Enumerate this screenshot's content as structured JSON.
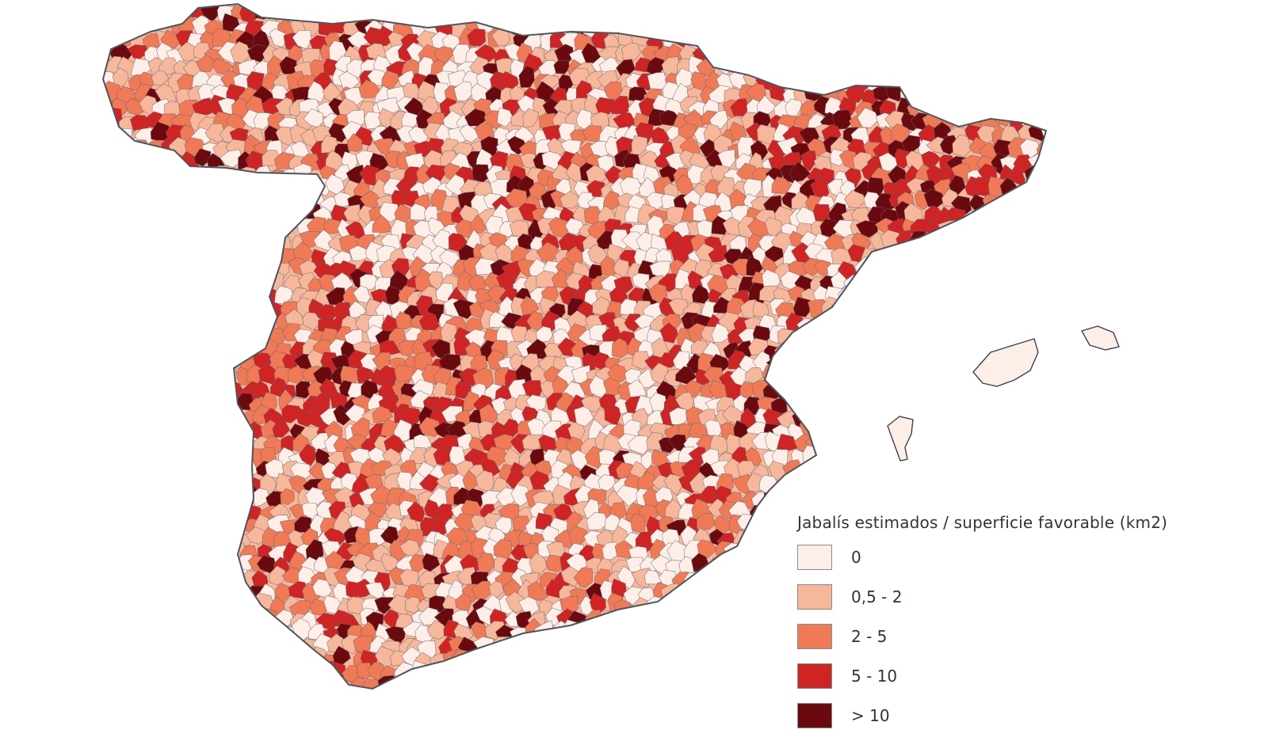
{
  "legend": {
    "title": "Jabalís estimados / superficie favorable (km2)",
    "items": [
      {
        "label": "0",
        "color": "#fdeee8"
      },
      {
        "label": "0,5 - 2",
        "color": "#f7b79b"
      },
      {
        "label": "2 - 5",
        "color": "#ef7a55"
      },
      {
        "label": "5 - 10",
        "color": "#cf2423"
      },
      {
        "label": "> 10",
        "color": "#6b0a0e"
      }
    ]
  },
  "map": {
    "region": "Spain",
    "unit_boundary_color": "#5a6470",
    "regions_shown": [
      "mainland",
      "balearic-islands"
    ]
  }
}
